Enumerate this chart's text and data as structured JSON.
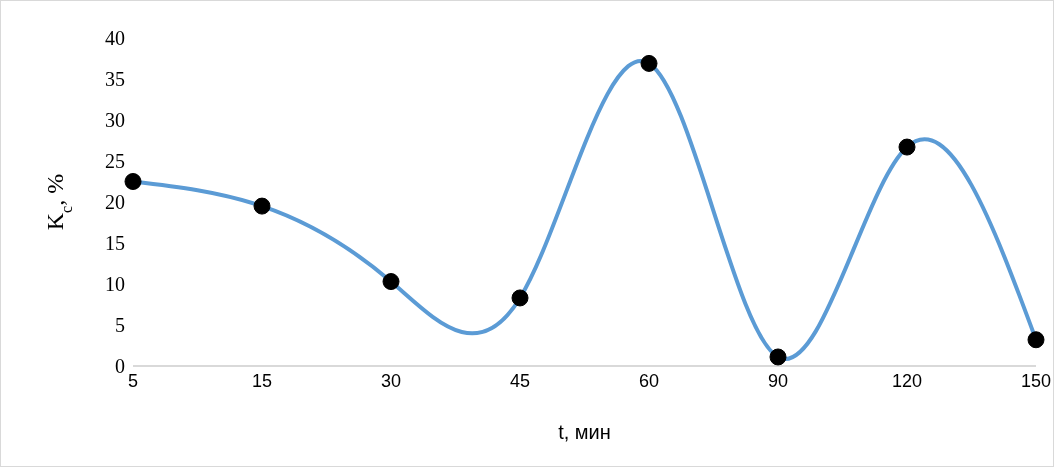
{
  "chart_data": {
    "type": "line",
    "xlabel": "t, мин",
    "ylabel": "K$_{c}$, %",
    "categories": [
      "5",
      "15",
      "30",
      "45",
      "60",
      "90",
      "120",
      "150"
    ],
    "series": [
      {
        "color": "#5b9bd5",
        "values": [
          22.5,
          19.5,
          10.3,
          8.3,
          36.9,
          1.1,
          26.7,
          3.2
        ]
      }
    ],
    "ylim": [
      0,
      40
    ],
    "yticks": [
      0,
      5,
      10,
      15,
      20,
      25,
      30,
      35,
      40
    ],
    "grid": false,
    "legend": false,
    "marker": "circle"
  }
}
